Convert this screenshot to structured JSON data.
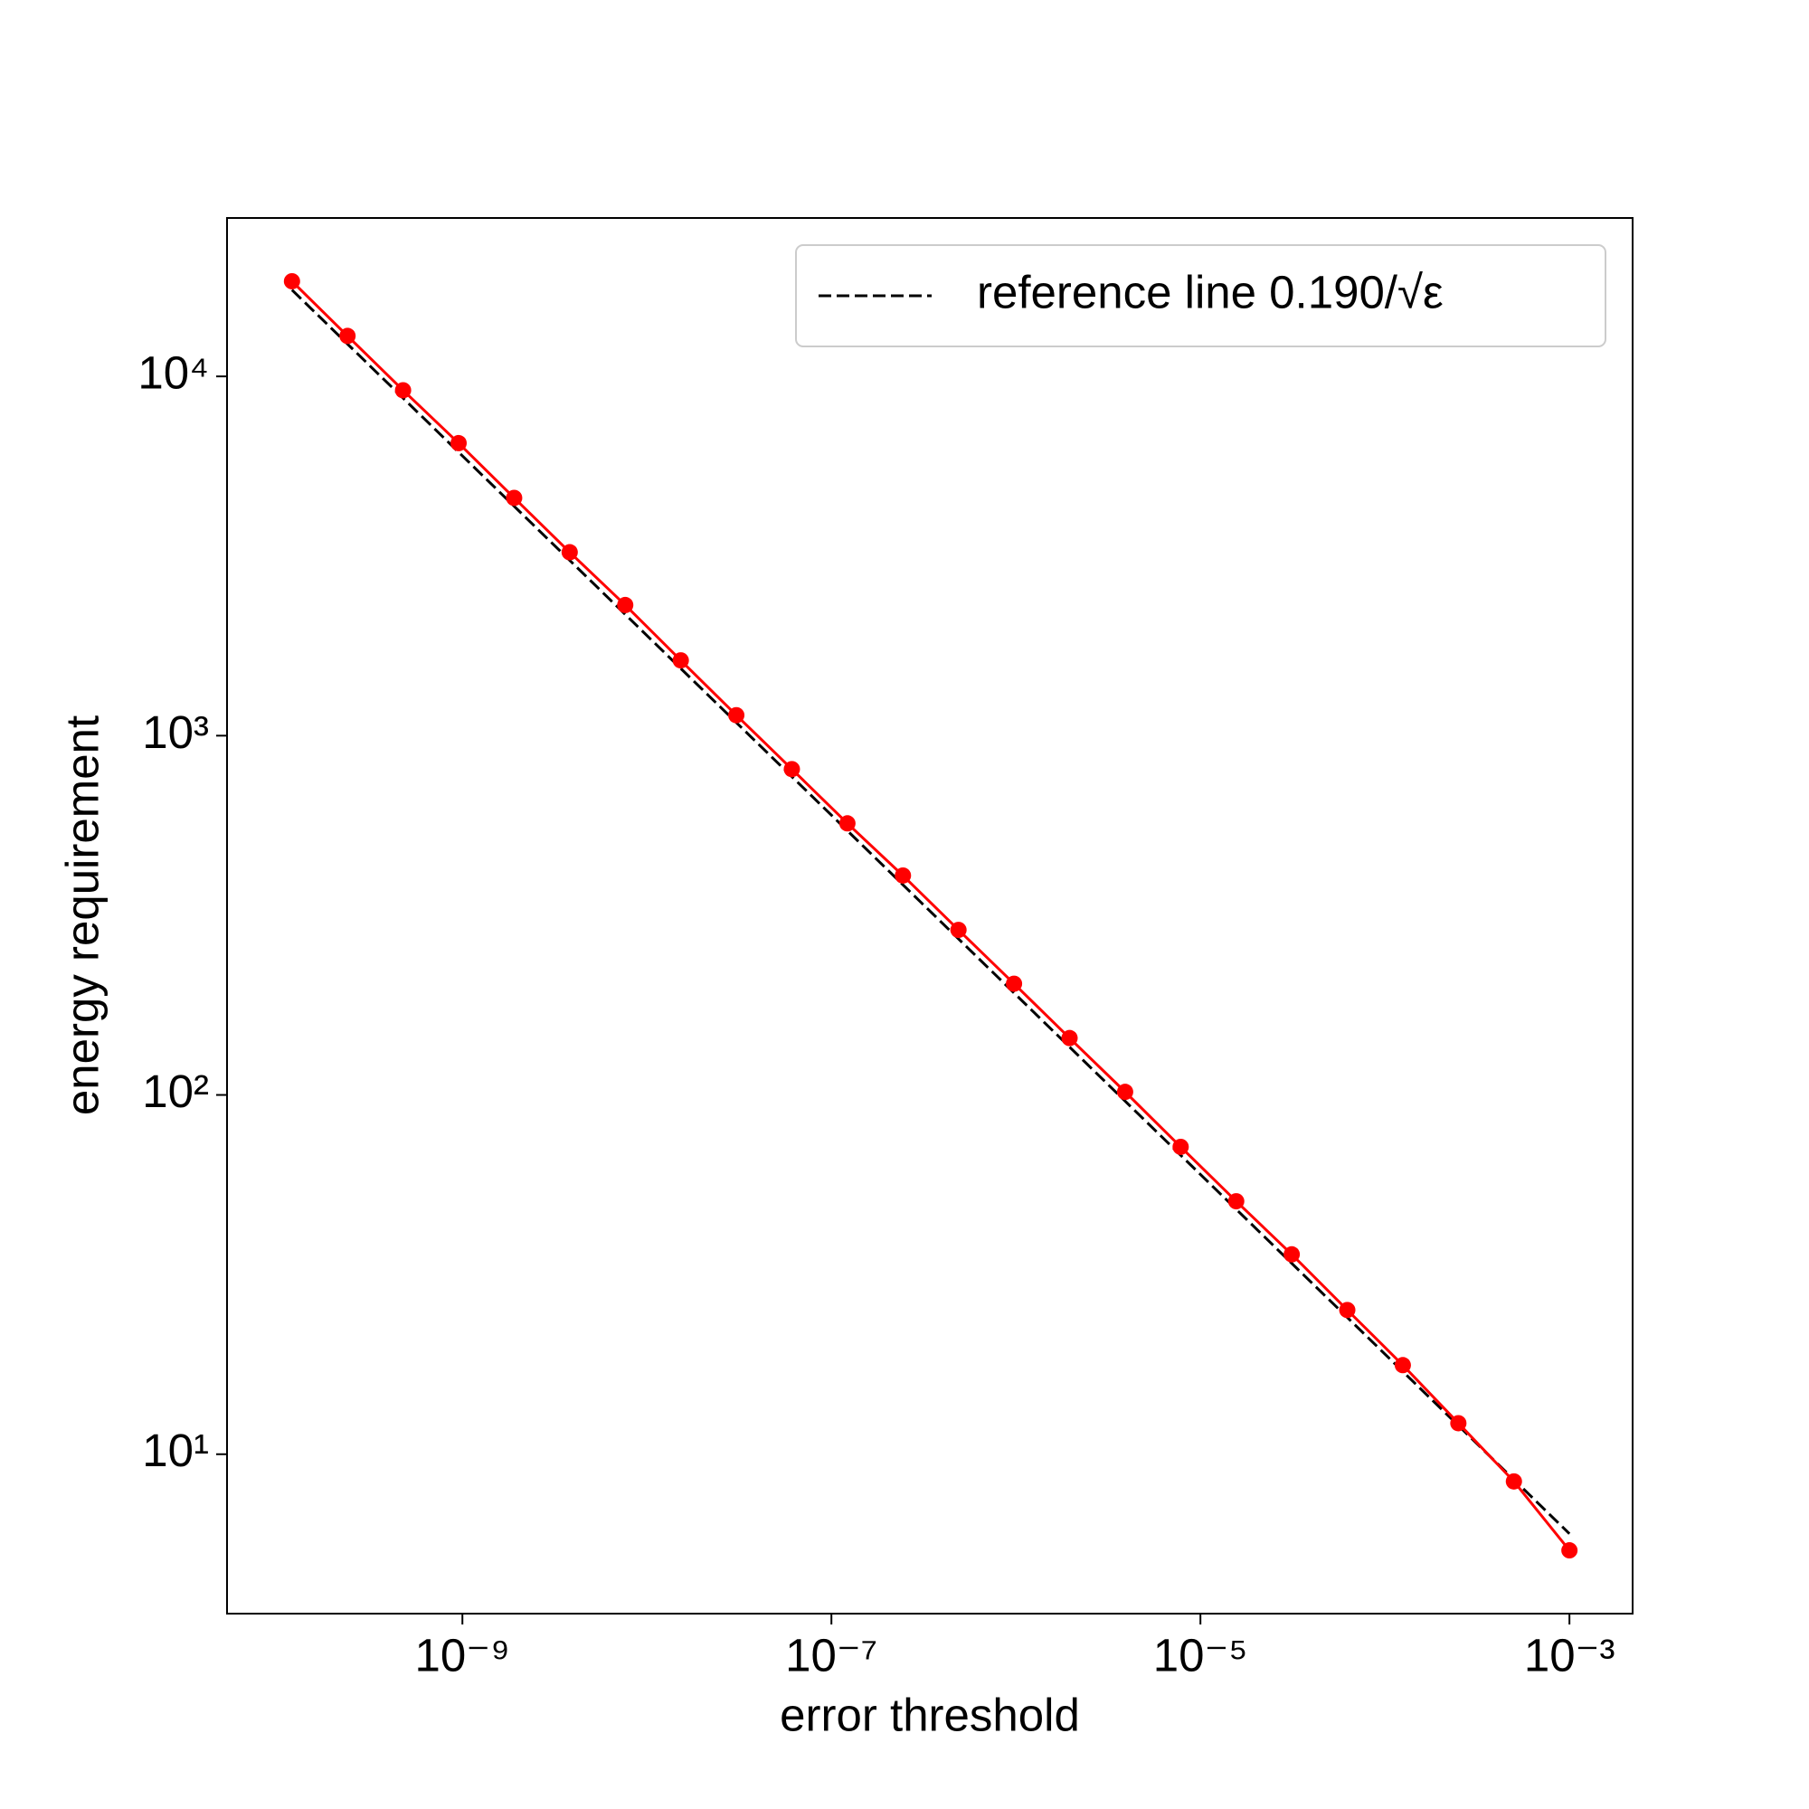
{
  "chart_data": {
    "type": "line",
    "xlabel": "error threshold",
    "ylabel": "energy requirement",
    "xscale": "log",
    "yscale": "log",
    "xlim": [
      5.3e-11,
      0.0022
    ],
    "ylim": [
      3.6,
      27600
    ],
    "xticks": [
      {
        "value": 1e-09,
        "label": "10⁻⁹"
      },
      {
        "value": 1e-07,
        "label": "10⁻⁷"
      },
      {
        "value": 1e-05,
        "label": "10⁻⁵"
      },
      {
        "value": 0.001,
        "label": "10⁻³"
      }
    ],
    "yticks": [
      {
        "value": 10,
        "label": "10¹"
      },
      {
        "value": 100,
        "label": "10²"
      },
      {
        "value": 1000,
        "label": "10³"
      },
      {
        "value": 10000,
        "label": "10⁴"
      }
    ],
    "legend": "upper right",
    "series": [
      {
        "name": "reference line 0.190/√ε",
        "color": "#000000",
        "linestyle": "dashed",
        "x": [
          1.1920929e-10,
          0.001
        ],
        "values": [
          17403,
          6.008
        ]
      },
      {
        "color": "#ff0000",
        "marker": "o",
        "x": [
          1.1920929e-10,
          2.3841858e-10,
          4.7683716e-10,
          9.5367432e-10,
          1.9073486e-09,
          3.8146973e-09,
          7.6293945e-09,
          1.5258789e-08,
          3.0517578e-08,
          6.1035156e-08,
          1.2207031e-07,
          2.4414063e-07,
          4.8828125e-07,
          9.765625e-07,
          1.953125e-06,
          3.90625e-06,
          7.8125e-06,
          1.5625e-05,
          3.125e-05,
          6.25e-05,
          0.000125,
          0.00025,
          0.0005,
          0.001
        ],
        "values": [
          18400,
          12960,
          9150,
          6520,
          4590,
          3240,
          2310,
          1620,
          1140,
          807,
          570,
          408,
          288,
          204,
          144,
          102,
          71.7,
          50.6,
          36.0,
          25.2,
          17.7,
          12.2,
          8.4,
          5.4
        ]
      }
    ]
  }
}
